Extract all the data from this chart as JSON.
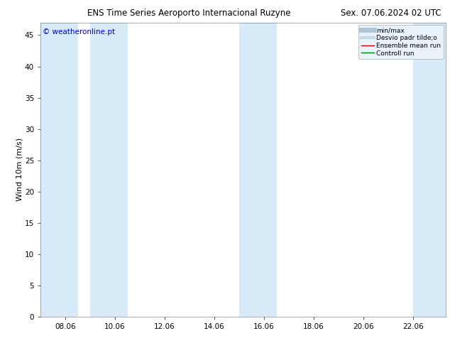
{
  "title": "ENS Time Series Aeroporto Internacional Ruzyne",
  "title_right": "Sex. 07.06.2024 02 UTC",
  "ylabel": "Wind 10m (m/s)",
  "watermark": "© weatheronline.pt",
  "xlim_start": 7.0,
  "xlim_end": 23.3,
  "ylim": [
    0,
    47
  ],
  "yticks": [
    0,
    5,
    10,
    15,
    20,
    25,
    30,
    35,
    40,
    45
  ],
  "xtick_labels": [
    "08.06",
    "10.06",
    "12.06",
    "14.06",
    "16.06",
    "18.06",
    "20.06",
    "22.06"
  ],
  "xtick_positions": [
    8,
    10,
    12,
    14,
    16,
    18,
    20,
    22
  ],
  "shaded_bands": [
    {
      "xmin": 7.0,
      "xmax": 8.5
    },
    {
      "xmin": 9.0,
      "xmax": 10.5
    },
    {
      "xmin": 15.0,
      "xmax": 16.5
    },
    {
      "xmin": 22.0,
      "xmax": 23.3
    }
  ],
  "shade_color": "#d6eaf8",
  "bg_color": "#ffffff",
  "legend_items": [
    {
      "label": "min/max",
      "color": "#aec6d8",
      "lw": 5,
      "ls": "-"
    },
    {
      "label": "Desvio padr tilde;o",
      "color": "#c8d8e8",
      "lw": 3,
      "ls": "-"
    },
    {
      "label": "Ensemble mean run",
      "color": "#cc0000",
      "lw": 1.0,
      "ls": "-"
    },
    {
      "label": "Controll run",
      "color": "#007700",
      "lw": 1.0,
      "ls": "-"
    }
  ],
  "title_fontsize": 8.5,
  "axis_fontsize": 7.5,
  "ylabel_fontsize": 8,
  "watermark_color": "#0000cc",
  "watermark_fontsize": 7.5,
  "legend_fontsize": 6.5
}
